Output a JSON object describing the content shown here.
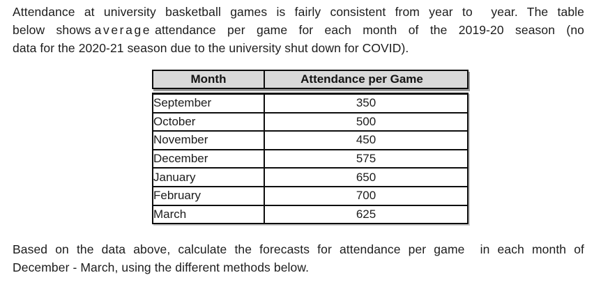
{
  "page": {
    "background_color": "#ffffff",
    "text_color": "#1c1c1c"
  },
  "intro_paragraph": {
    "line1": "Attendance at university basketball games is fairly consistent from year to  year. The table",
    "line2_part1": "below shows",
    "line2_expanded_word": "average",
    "line2_part2": "attendance per game for each month of the 2019-20 season (no",
    "line3": "data for the 2020-21 season due to the university shut down for COVID)."
  },
  "table": {
    "header_bg_color": "#d9d9d9",
    "border_color": "#0d0d0d",
    "headers": [
      "Month",
      "Attendance per Game"
    ],
    "rows": [
      {
        "month": "September",
        "attendance": "350"
      },
      {
        "month": "October",
        "attendance": "500"
      },
      {
        "month": "November",
        "attendance": "450"
      },
      {
        "month": "December",
        "attendance": "575"
      },
      {
        "month": "January",
        "attendance": "650"
      },
      {
        "month": "February",
        "attendance": "700"
      },
      {
        "month": "March",
        "attendance": "625"
      }
    ]
  },
  "closing_paragraph": {
    "line1": "Based on the data above, calculate the forecasts for attendance per game  in each month of",
    "line2": "December - March, using the different methods below."
  }
}
